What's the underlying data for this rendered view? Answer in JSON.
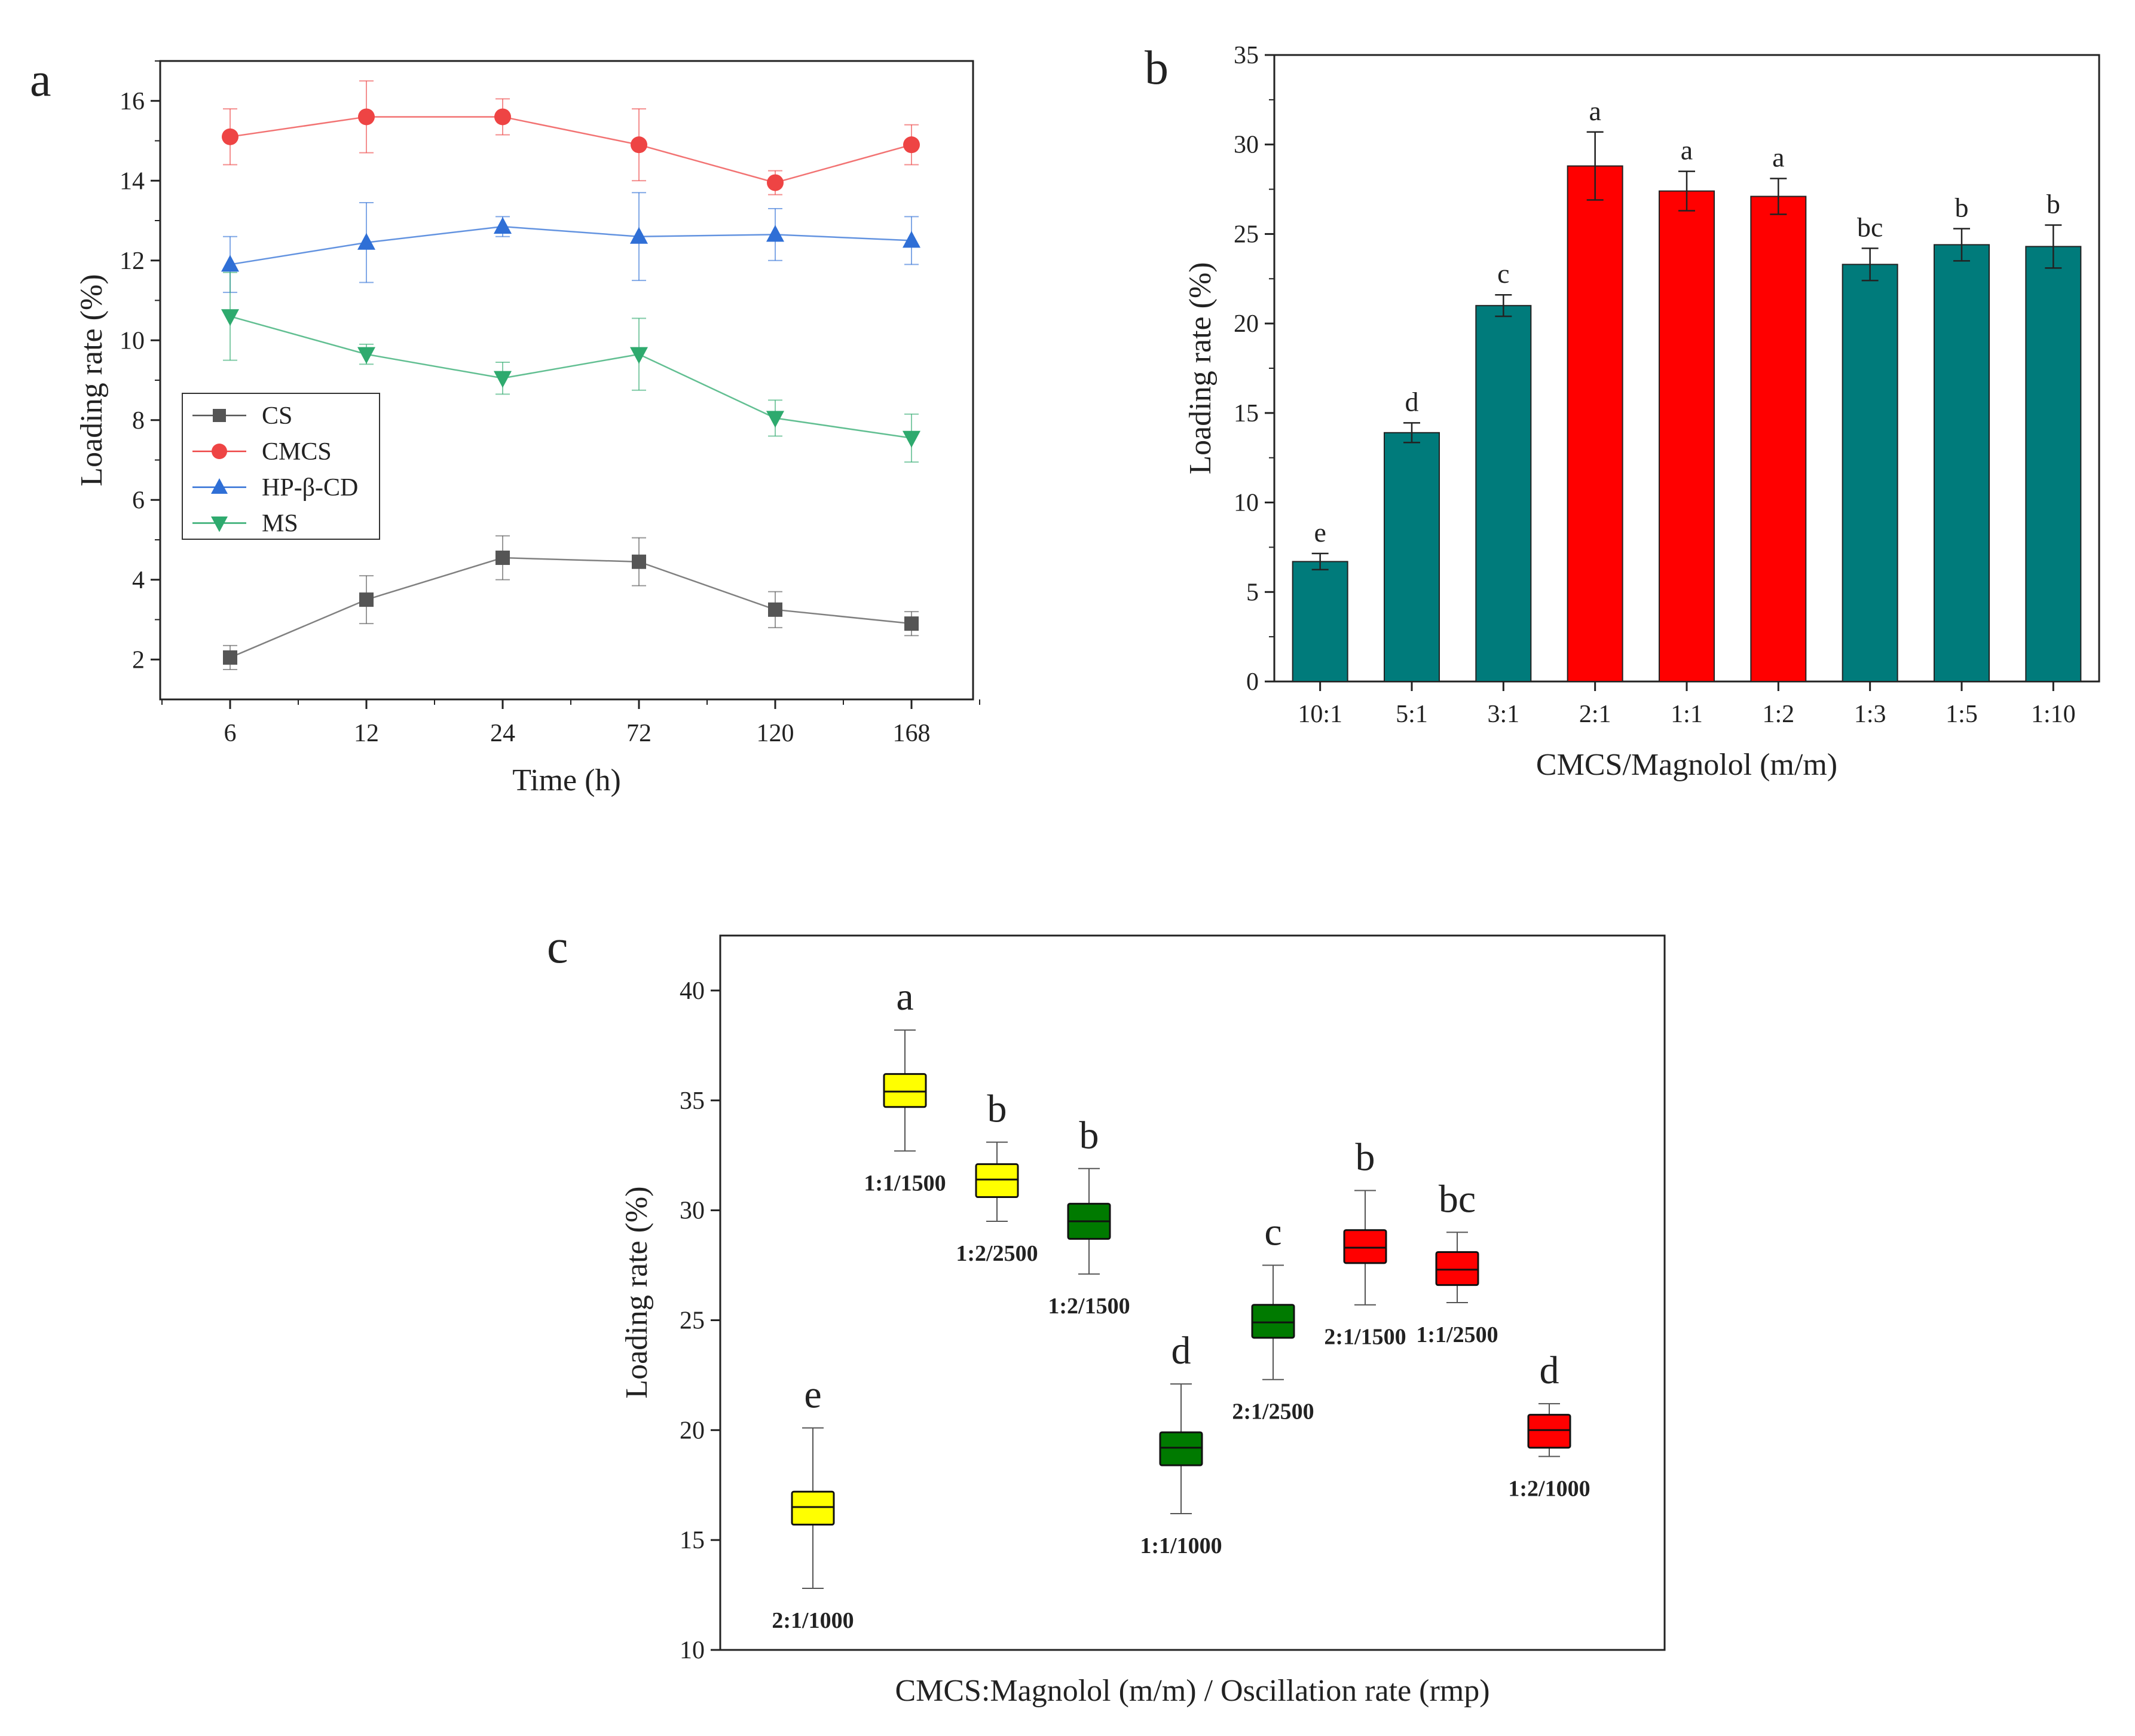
{
  "chart_data": [
    {
      "panel": "a",
      "type": "line",
      "title": "",
      "xlabel": "Time (h)",
      "ylabel": "Loading rate (%)",
      "categories": [
        "6",
        "12",
        "24",
        "72",
        "120",
        "168"
      ],
      "yticks": [
        "2",
        "4",
        "6",
        "8",
        "10",
        "12",
        "14",
        "16"
      ],
      "ylim": [
        1,
        17
      ],
      "legend_position": "middle-left",
      "series": [
        {
          "name": "CS",
          "marker": "square",
          "color": "#555555",
          "values": [
            2.05,
            3.5,
            4.55,
            4.45,
            3.25,
            2.9
          ],
          "errors": [
            0.3,
            0.6,
            0.55,
            0.6,
            0.45,
            0.3
          ]
        },
        {
          "name": "CMCS",
          "marker": "circle",
          "color": "#ee4444",
          "values": [
            15.1,
            15.6,
            15.6,
            14.9,
            13.95,
            14.9
          ],
          "errors": [
            0.7,
            0.9,
            0.45,
            0.9,
            0.3,
            0.5
          ]
        },
        {
          "name": "HP-β-CD",
          "marker": "triangle-up",
          "color": "#2f6fd6",
          "values": [
            11.9,
            12.45,
            12.85,
            12.6,
            12.65,
            12.5
          ],
          "errors": [
            0.7,
            1.0,
            0.25,
            1.1,
            0.65,
            0.6
          ]
        },
        {
          "name": "MS",
          "marker": "triangle-down",
          "color": "#2eaa6e",
          "values": [
            10.6,
            9.65,
            9.05,
            9.65,
            8.05,
            7.55
          ],
          "errors": [
            1.1,
            0.25,
            0.4,
            0.9,
            0.45,
            0.6
          ]
        }
      ]
    },
    {
      "panel": "b",
      "type": "bar",
      "title": "",
      "xlabel": "CMCS/Magnolol (m/m)",
      "ylabel": "Loading rate (%)",
      "categories": [
        "10:1",
        "5:1",
        "3:1",
        "2:1",
        "1:1",
        "1:2",
        "1:3",
        "1:5",
        "1:10"
      ],
      "values": [
        6.7,
        13.9,
        21.0,
        28.8,
        27.4,
        27.1,
        23.3,
        24.4,
        24.3
      ],
      "errors": [
        0.45,
        0.55,
        0.6,
        1.9,
        1.1,
        1.0,
        0.9,
        0.9,
        1.2
      ],
      "significance": [
        "e",
        "d",
        "c",
        "a",
        "a",
        "a",
        "bc",
        "b",
        "b"
      ],
      "bar_colors": [
        "#007b7b",
        "#007b7b",
        "#007b7b",
        "#ff0000",
        "#ff0000",
        "#ff0000",
        "#007b7b",
        "#007b7b",
        "#007b7b"
      ],
      "yticks": [
        "0",
        "5",
        "10",
        "15",
        "20",
        "25",
        "30",
        "35"
      ],
      "ylim": [
        0,
        35
      ]
    },
    {
      "panel": "c",
      "type": "box",
      "title": "",
      "xlabel": "CMCS:Magnolol (m/m) / Oscillation rate (rmp)",
      "ylabel": "Loading rate (%)",
      "yticks": [
        "10",
        "15",
        "20",
        "25",
        "30",
        "35",
        "40"
      ],
      "ylim": [
        10,
        42.5
      ],
      "boxes": [
        {
          "label": "2:1/1000",
          "sig": "e",
          "color": "#ffff00",
          "min": 12.8,
          "q1": 15.7,
          "median": 16.5,
          "q3": 17.2,
          "max": 20.1
        },
        {
          "label": "1:1/1500",
          "sig": "a",
          "color": "#ffff00",
          "min": 32.7,
          "q1": 34.7,
          "median": 35.4,
          "q3": 36.2,
          "max": 38.2
        },
        {
          "label": "1:2/2500",
          "sig": "b",
          "color": "#ffff00",
          "min": 29.5,
          "q1": 30.6,
          "median": 31.4,
          "q3": 32.1,
          "max": 33.1
        },
        {
          "label": "1:2/1500",
          "sig": "b",
          "color": "#007a00",
          "min": 27.1,
          "q1": 28.7,
          "median": 29.5,
          "q3": 30.3,
          "max": 31.9
        },
        {
          "label": "1:1/1000",
          "sig": "d",
          "color": "#007a00",
          "min": 16.2,
          "q1": 18.4,
          "median": 19.2,
          "q3": 19.9,
          "max": 22.1
        },
        {
          "label": "2:1/2500",
          "sig": "c",
          "color": "#007a00",
          "min": 22.3,
          "q1": 24.2,
          "median": 24.9,
          "q3": 25.7,
          "max": 27.5
        },
        {
          "label": "2:1/1500",
          "sig": "b",
          "color": "#ff0000",
          "min": 25.7,
          "q1": 27.6,
          "median": 28.3,
          "q3": 29.1,
          "max": 30.9
        },
        {
          "label": "1:1/2500",
          "sig": "bc",
          "color": "#ff0000",
          "min": 25.8,
          "q1": 26.6,
          "median": 27.3,
          "q3": 28.1,
          "max": 29.0
        },
        {
          "label": "1:2/1000",
          "sig": "d",
          "color": "#ff0000",
          "min": 18.8,
          "q1": 19.2,
          "median": 20.0,
          "q3": 20.7,
          "max": 21.2
        }
      ]
    }
  ]
}
